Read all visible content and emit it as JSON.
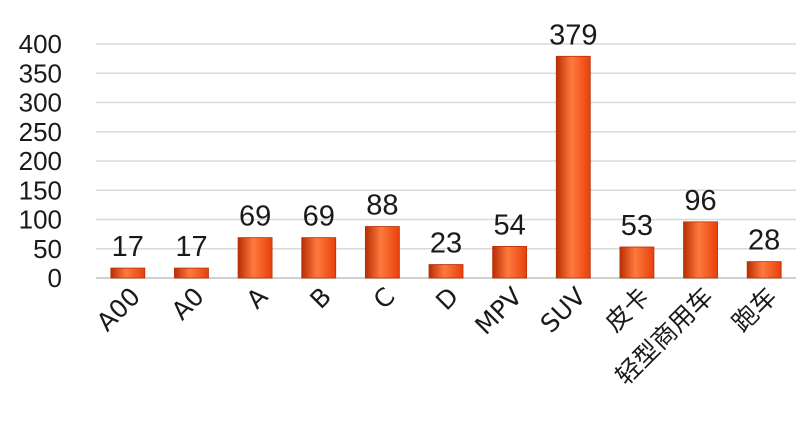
{
  "chart_data": {
    "type": "bar",
    "categories": [
      "A00",
      "A0",
      "A",
      "B",
      "C",
      "D",
      "MPV",
      "SUV",
      "皮卡",
      "轻型商用车",
      "跑车"
    ],
    "values": [
      17,
      17,
      69,
      69,
      88,
      23,
      54,
      379,
      53,
      96,
      28
    ],
    "data_labels": [
      "17",
      "17",
      "69",
      "69",
      "88",
      "23",
      "54",
      "379",
      "53",
      "96",
      "28"
    ],
    "title": "",
    "xlabel": "",
    "ylabel": "",
    "ylim": [
      0,
      400
    ],
    "yticks": [
      "0",
      "50",
      "100",
      "150",
      "200",
      "250",
      "300",
      "350",
      "400"
    ],
    "grid": true,
    "legend": "none",
    "bar_color": "#e8400c",
    "bar_color_light": "#ff7a3d",
    "bar_color_dark": "#b82e05"
  }
}
